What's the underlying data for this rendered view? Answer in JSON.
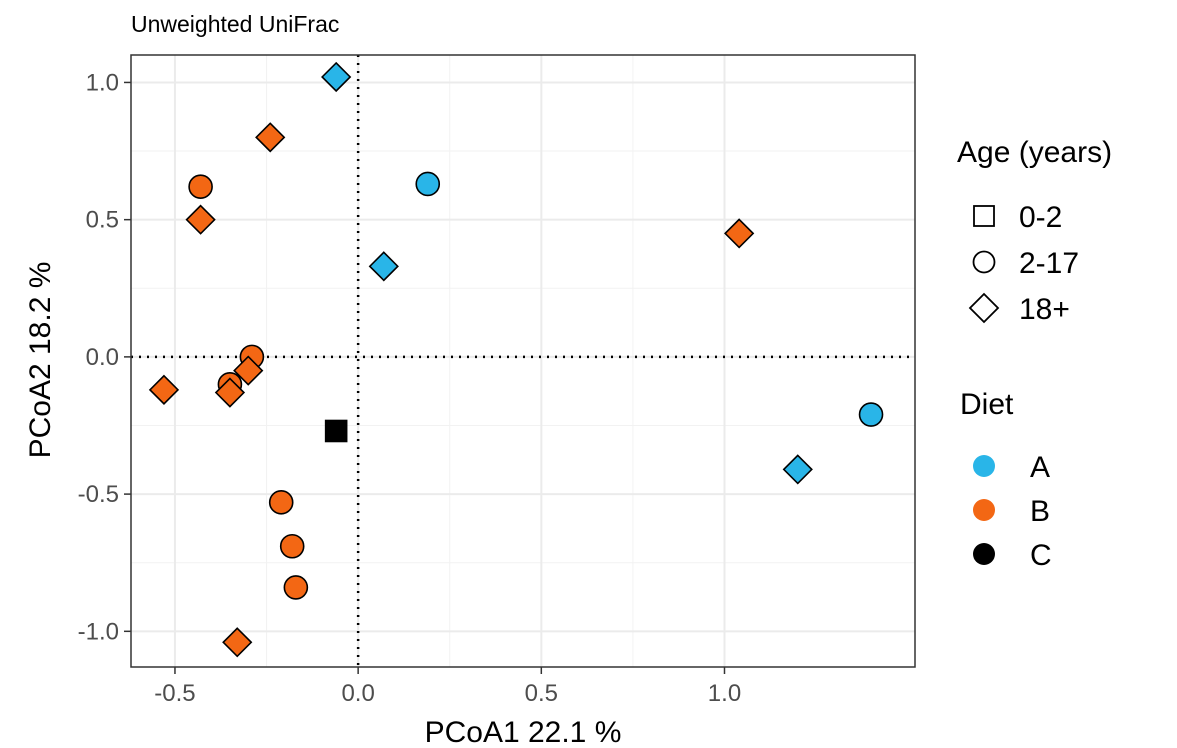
{
  "chart_data": {
    "type": "scatter",
    "title": "Unweighted UniFrac",
    "xlabel": "PCoA1  22.1 %",
    "ylabel": "PCoA2  18.2 %",
    "xlim": [
      -0.62,
      1.52
    ],
    "ylim": [
      -1.13,
      1.1
    ],
    "xticks": [
      -0.5,
      0.0,
      0.5,
      1.0
    ],
    "yticks": [
      -1.0,
      -0.5,
      0.0,
      0.5,
      1.0
    ],
    "xtick_labels": [
      "-0.5",
      "0.0",
      "0.5",
      "1.0"
    ],
    "ytick_labels": [
      "-1.0",
      "-0.5",
      "0.0",
      "0.5",
      "1.0"
    ],
    "grid": true,
    "reference_lines": {
      "x": 0,
      "y": 0,
      "style": "dotted"
    },
    "legend_position": "right",
    "shape_legend": {
      "title": "Age (years)",
      "items": [
        {
          "label": "0-2",
          "shape": "square"
        },
        {
          "label": "2-17",
          "shape": "circle"
        },
        {
          "label": "18+",
          "shape": "diamond"
        }
      ]
    },
    "color_legend": {
      "title": "Diet",
      "items": [
        {
          "label": "A",
          "color": "#29b5e8"
        },
        {
          "label": "B",
          "color": "#f36714"
        },
        {
          "label": "C",
          "color": "#000000"
        }
      ]
    },
    "points": [
      {
        "x": -0.06,
        "y": 1.02,
        "age": "18+",
        "diet": "A"
      },
      {
        "x": 0.19,
        "y": 0.63,
        "age": "2-17",
        "diet": "A"
      },
      {
        "x": 0.07,
        "y": 0.33,
        "age": "18+",
        "diet": "A"
      },
      {
        "x": 1.4,
        "y": -0.21,
        "age": "2-17",
        "diet": "A"
      },
      {
        "x": 1.2,
        "y": -0.41,
        "age": "18+",
        "diet": "A"
      },
      {
        "x": -0.24,
        "y": 0.8,
        "age": "18+",
        "diet": "B"
      },
      {
        "x": -0.43,
        "y": 0.62,
        "age": "2-17",
        "diet": "B"
      },
      {
        "x": -0.43,
        "y": 0.5,
        "age": "18+",
        "diet": "B"
      },
      {
        "x": 1.04,
        "y": 0.45,
        "age": "18+",
        "diet": "B"
      },
      {
        "x": -0.29,
        "y": 0.0,
        "age": "2-17",
        "diet": "B"
      },
      {
        "x": -0.3,
        "y": -0.05,
        "age": "18+",
        "diet": "B"
      },
      {
        "x": -0.35,
        "y": -0.1,
        "age": "2-17",
        "diet": "B"
      },
      {
        "x": -0.35,
        "y": -0.13,
        "age": "18+",
        "diet": "B"
      },
      {
        "x": -0.53,
        "y": -0.12,
        "age": "18+",
        "diet": "B"
      },
      {
        "x": -0.21,
        "y": -0.53,
        "age": "2-17",
        "diet": "B"
      },
      {
        "x": -0.18,
        "y": -0.69,
        "age": "2-17",
        "diet": "B"
      },
      {
        "x": -0.17,
        "y": -0.84,
        "age": "2-17",
        "diet": "B"
      },
      {
        "x": -0.33,
        "y": -1.04,
        "age": "18+",
        "diet": "B"
      },
      {
        "x": -0.06,
        "y": -0.27,
        "age": "0-2",
        "diet": "C"
      }
    ]
  }
}
